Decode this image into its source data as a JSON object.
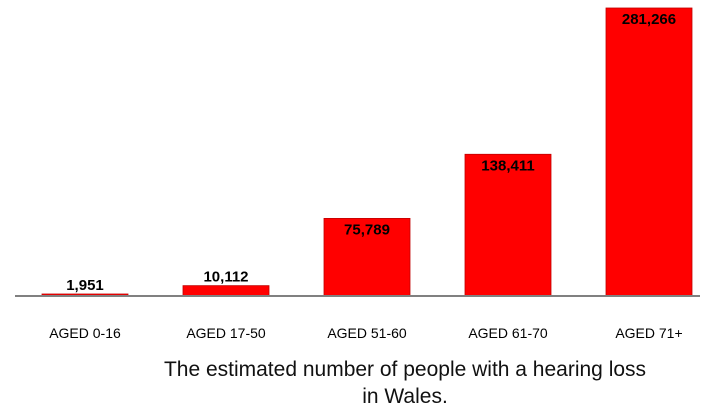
{
  "chart_data": {
    "type": "bar",
    "categories": [
      "AGED 0-16",
      "AGED 17-50",
      "AGED 51-60",
      "AGED 61-70",
      "AGED 71+"
    ],
    "values": [
      1951,
      10112,
      75789,
      138411,
      281266
    ],
    "value_labels": [
      "1,951",
      "10,112",
      "75,789",
      "138,411",
      "281,266"
    ],
    "caption_line1": "The estimated number of people with a hearing loss",
    "caption_line2": "in Wales.",
    "ylim": [
      0,
      281266
    ],
    "grid": false,
    "bar_color": "#ff0000",
    "bar_edge_color": "#c00000",
    "axis_color": "#808080"
  }
}
